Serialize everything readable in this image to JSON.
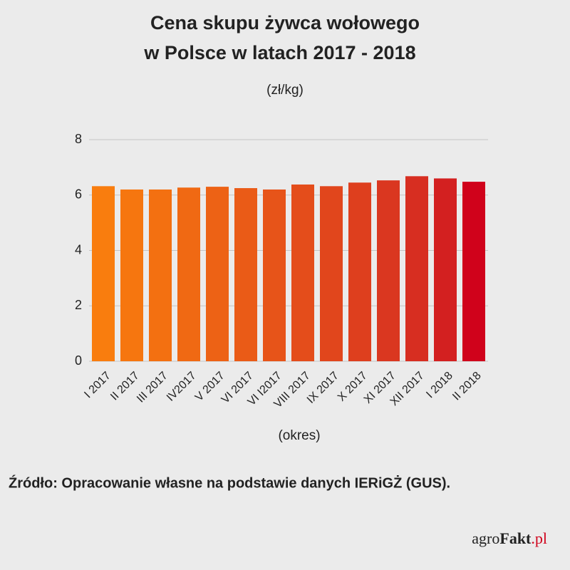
{
  "chart_data": {
    "type": "bar",
    "title": [
      "Cena skupu żywca wołowego",
      "w Polsce w latach 2017 - 2018"
    ],
    "subtitle": "(zł/kg)",
    "x_label": "(okres)",
    "categories": [
      "I 2017",
      "II 2017",
      "III 2017",
      "IV2017",
      "V 2017",
      "VI 2017",
      "VI I2017",
      "VIII 2017",
      "IX 2017",
      "X 2017",
      "XI 2017",
      "XII 2017",
      "I 2018",
      "II 2018"
    ],
    "values": [
      6.32,
      6.2,
      6.2,
      6.27,
      6.3,
      6.25,
      6.2,
      6.38,
      6.32,
      6.45,
      6.53,
      6.68,
      6.6,
      6.48
    ],
    "colors": [
      "#f97d0e",
      "#f6760f",
      "#f37011",
      "#f06913",
      "#ed6215",
      "#ea5b17",
      "#e75419",
      "#e44d1b",
      "#e1461c",
      "#de3f1e",
      "#da3720",
      "#d72e21",
      "#d32020",
      "#d0021b"
    ],
    "ylim": [
      0,
      8
    ],
    "yticks": [
      0,
      2,
      4,
      6,
      8
    ],
    "grid": true
  },
  "source": "Źródło: Opracowanie własne na podstawie danych IERiGŻ (GUS).",
  "logo": [
    "agro",
    "Fakt",
    ".pl"
  ]
}
